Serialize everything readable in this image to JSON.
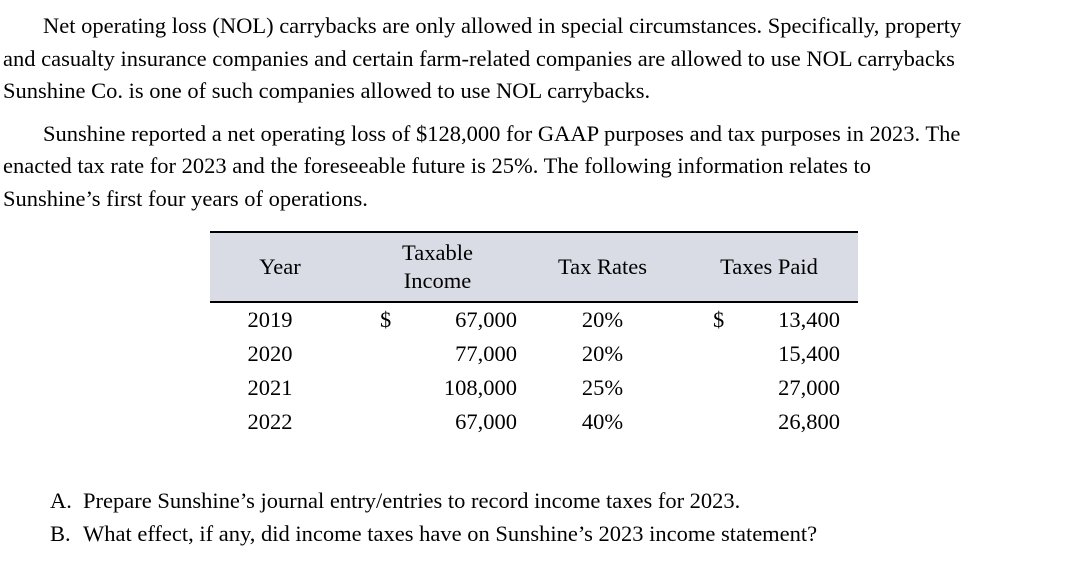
{
  "page": {
    "background": "#ffffff",
    "text_color": "#000000"
  },
  "paragraphs": [
    {
      "lines": [
        "Net operating loss (NOL) carrybacks are only allowed in special circumstances. Specifically, property",
        "and casualty insurance companies and certain farm-related companies are allowed to use NOL carrybacks",
        "Sunshine Co. is one of such companies allowed to use NOL carrybacks."
      ]
    },
    {
      "lines": [
        "Sunshine reported a net operating loss of $128,000 for GAAP purposes and tax purposes in 2023. The",
        "enacted tax rate for 2023 and the foreseeable future is 25%. The following information relates to",
        "Sunshine’s first four years of operations."
      ]
    }
  ],
  "table": {
    "header_bg": "#d9dce5",
    "columns": [
      "Year",
      "Taxable\nIncome",
      "Tax Rates",
      "Taxes Paid"
    ],
    "rows": [
      {
        "year": "2019",
        "currency_taxable": "$",
        "taxable_income": "67,000",
        "tax_rate": "20%",
        "currency_paid": "$",
        "taxes_paid": "13,400"
      },
      {
        "year": "2020",
        "currency_taxable": "",
        "taxable_income": "77,000",
        "tax_rate": "20%",
        "currency_paid": "",
        "taxes_paid": "15,400"
      },
      {
        "year": "2021",
        "currency_taxable": "",
        "taxable_income": "108,000",
        "tax_rate": "25%",
        "currency_paid": "",
        "taxes_paid": "27,000"
      },
      {
        "year": "2022",
        "currency_taxable": "",
        "taxable_income": "67,000",
        "tax_rate": "40%",
        "currency_paid": "",
        "taxes_paid": "26,800"
      }
    ]
  },
  "questions": [
    {
      "marker": "A.",
      "text": "Prepare Sunshine’s journal entry/entries to record income taxes for 2023."
    },
    {
      "marker": "B.",
      "text": "What effect, if any, did income taxes have on Sunshine’s 2023 income statement?"
    }
  ]
}
